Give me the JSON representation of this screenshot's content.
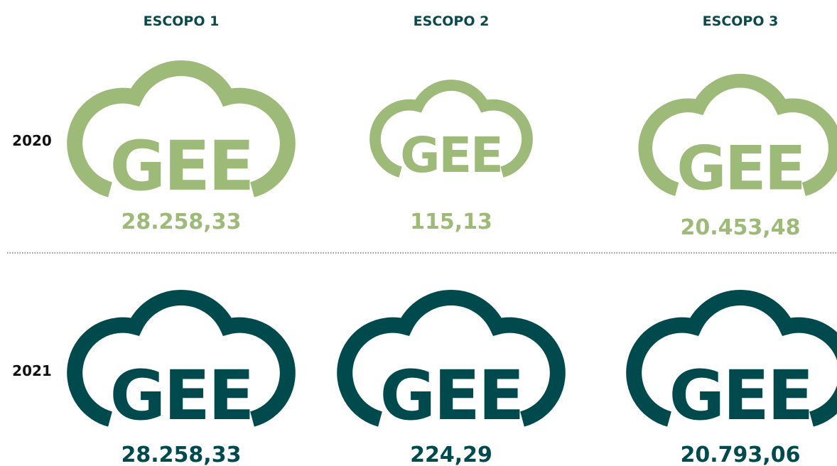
{
  "columns": [
    "ESCOPO 1",
    "ESCOPO 2",
    "ESCOPO 3"
  ],
  "rows": [
    {
      "year": "2020",
      "cells": [
        {
          "icon": "GEE",
          "value": "28.258,33"
        },
        {
          "icon": "GEE",
          "value": "115,13"
        },
        {
          "icon": "GEE",
          "value": "20.453,48"
        }
      ]
    },
    {
      "year": "2021",
      "cells": [
        {
          "icon": "GEE",
          "value": "28.258,33"
        },
        {
          "icon": "GEE",
          "value": "224,29"
        },
        {
          "icon": "GEE",
          "value": "20.793,06"
        }
      ]
    }
  ]
}
